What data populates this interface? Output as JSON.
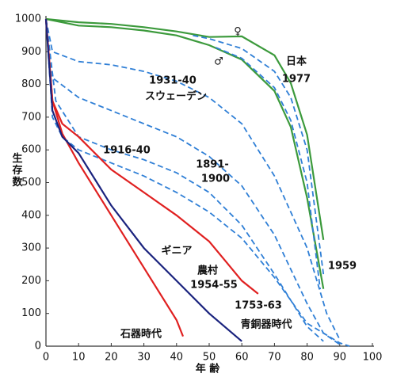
{
  "chart_data": {
    "type": "line",
    "y_label": "生存数",
    "x_label": "年 齢",
    "xlim": [
      0,
      100
    ],
    "xticks": [
      0,
      10,
      20,
      30,
      40,
      50,
      60,
      70,
      80,
      90,
      100
    ],
    "ylim": [
      0,
      1000
    ],
    "yticks": [
      0,
      100,
      200,
      300,
      400,
      500,
      600,
      700,
      800,
      900,
      1000
    ],
    "series": [
      {
        "color": "#3c9a3c",
        "dashed": false,
        "x": [
          0,
          10,
          20,
          30,
          40,
          50,
          60,
          70,
          75,
          80,
          85
        ],
        "values": [
          1000,
          990,
          985,
          975,
          962,
          945,
          947,
          889,
          804,
          646,
          325
        ]
      },
      {
        "color": "#3c9a3c",
        "dashed": false,
        "x": [
          0,
          10,
          20,
          30,
          40,
          50,
          60,
          70,
          75,
          80,
          85
        ],
        "values": [
          1000,
          980,
          975,
          965,
          950,
          920,
          876,
          780,
          670,
          453,
          175
        ]
      },
      {
        "color": "#2f7fd6",
        "dashed": true,
        "x": [
          45,
          50,
          60,
          70,
          75,
          80,
          85
        ],
        "values": [
          950,
          940,
          910,
          840,
          760,
          600,
          220
        ]
      },
      {
        "color": "#2f7fd6",
        "dashed": true,
        "x": [
          52,
          60,
          70,
          75,
          80,
          84
        ],
        "values": [
          913,
          880,
          790,
          690,
          500,
          174
        ]
      },
      {
        "color": "#2f7fd6",
        "dashed": true,
        "x": [
          0,
          2,
          10,
          20,
          30,
          40,
          50,
          60,
          70,
          80,
          86,
          90
        ],
        "values": [
          1000,
          900,
          870,
          860,
          840,
          810,
          760,
          680,
          520,
          300,
          100,
          20
        ]
      },
      {
        "color": "#2f7fd6",
        "dashed": true,
        "x": [
          0,
          2,
          10,
          20,
          30,
          40,
          50,
          60,
          70,
          80,
          85,
          90
        ],
        "values": [
          1000,
          820,
          760,
          720,
          680,
          640,
          580,
          490,
          340,
          130,
          40,
          5
        ]
      },
      {
        "color": "#2f7fd6",
        "dashed": true,
        "x": [
          0,
          3,
          10,
          20,
          30,
          40,
          50,
          60,
          70,
          80,
          85
        ],
        "values": [
          1000,
          750,
          640,
          600,
          570,
          530,
          470,
          370,
          220,
          60,
          15
        ]
      },
      {
        "color": "#2f7fd6",
        "dashed": true,
        "x": [
          0,
          2,
          5,
          10,
          20,
          30,
          40,
          50,
          60,
          70,
          80,
          90,
          93
        ],
        "values": [
          1000,
          700,
          640,
          600,
          560,
          520,
          470,
          410,
          330,
          210,
          70,
          10,
          0
        ]
      },
      {
        "color": "#e02020",
        "dashed": false,
        "x": [
          0,
          2,
          5,
          10,
          20,
          30,
          40,
          50,
          55,
          60,
          65
        ],
        "values": [
          1000,
          750,
          680,
          640,
          540,
          470,
          400,
          320,
          260,
          200,
          160
        ]
      },
      {
        "color": "#e02020",
        "dashed": false,
        "x": [
          0,
          2,
          5,
          10,
          20,
          30,
          40,
          42
        ],
        "values": [
          1000,
          750,
          650,
          560,
          400,
          240,
          80,
          30
        ]
      },
      {
        "color": "#1a237e",
        "dashed": false,
        "x": [
          0,
          2,
          5,
          10,
          20,
          30,
          40,
          50,
          60
        ],
        "values": [
          1000,
          720,
          640,
          590,
          430,
          300,
          200,
          100,
          15
        ]
      }
    ],
    "annotations": [
      "♀",
      "♂",
      "日本",
      "1977",
      "1931-40",
      "スウェーデン",
      "1916-40",
      "1891-",
      "1900",
      "ギニア",
      "農村",
      "1954-55",
      "1959",
      "1753-63",
      "青銅器時代",
      "石器時代"
    ]
  }
}
